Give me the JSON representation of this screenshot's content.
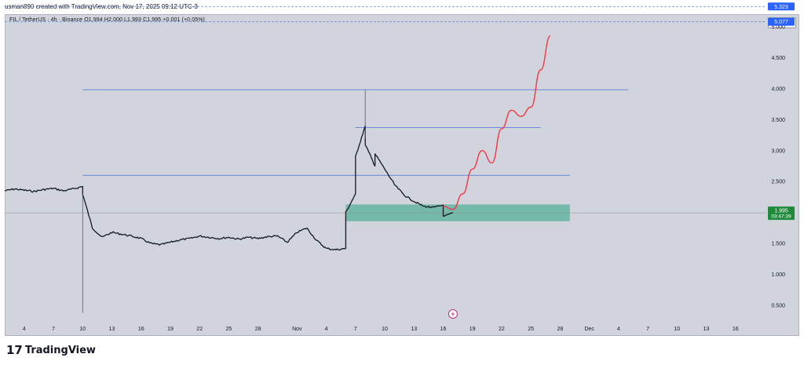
{
  "header": {
    "attribution": "usman890 created with TradingView.com, Nov 17, 2025 09:12 UTC-3"
  },
  "legend": {
    "text": "FIL / TetherUS · 4h · Binance  O1.994  H2.000  L1.993  C1.995  +0.001 (+0.05%)"
  },
  "currency": "USDT",
  "price_tags": {
    "dashed_1": "5.323",
    "dashed_2": "5.077",
    "current": "1.995",
    "countdown": "03:47:39"
  },
  "logo": {
    "mark": "17",
    "text": "TradingView"
  },
  "colors": {
    "panel": "#d1d4dc",
    "candles": "#131722",
    "level_lines": "#5b7fd6",
    "projection": "#f23645",
    "zone": "#64b4a0",
    "tag": "#2962ff",
    "current_tag": "#1e8a3a"
  },
  "chart_data": {
    "type": "line",
    "title": "",
    "xlabel": "",
    "ylabel": "",
    "ylim": [
      0.3,
      5.2
    ],
    "x_range": [
      "2025-10-02",
      "2025-12-19"
    ],
    "y_tick_labels": [
      "0.500",
      "1.000",
      "1.500",
      "2.000",
      "2.500",
      "3.000",
      "3.500",
      "4.000",
      "4.500",
      "5.000"
    ],
    "x_tick_labels": [
      {
        "label": "4",
        "date": "2025-10-04"
      },
      {
        "label": "7",
        "date": "2025-10-07"
      },
      {
        "label": "10",
        "date": "2025-10-10"
      },
      {
        "label": "13",
        "date": "2025-10-13"
      },
      {
        "label": "16",
        "date": "2025-10-16"
      },
      {
        "label": "19",
        "date": "2025-10-19"
      },
      {
        "label": "22",
        "date": "2025-10-22"
      },
      {
        "label": "25",
        "date": "2025-10-25"
      },
      {
        "label": "28",
        "date": "2025-10-28"
      },
      {
        "label": "Nov",
        "date": "2025-11-01"
      },
      {
        "label": "4",
        "date": "2025-11-04"
      },
      {
        "label": "7",
        "date": "2025-11-07"
      },
      {
        "label": "10",
        "date": "2025-11-10"
      },
      {
        "label": "13",
        "date": "2025-11-13"
      },
      {
        "label": "16",
        "date": "2025-11-16"
      },
      {
        "label": "19",
        "date": "2025-11-19"
      },
      {
        "label": "22",
        "date": "2025-11-22"
      },
      {
        "label": "25",
        "date": "2025-11-25"
      },
      {
        "label": "28",
        "date": "2025-11-28"
      },
      {
        "label": "Dec",
        "date": "2025-12-01"
      },
      {
        "label": "4",
        "date": "2025-12-04"
      },
      {
        "label": "7",
        "date": "2025-12-07"
      },
      {
        "label": "10",
        "date": "2025-12-10"
      },
      {
        "label": "13",
        "date": "2025-12-13"
      },
      {
        "label": "16",
        "date": "2025-12-16"
      }
    ],
    "price_path": [
      {
        "x": "2025-10-02",
        "y": 2.35
      },
      {
        "x": "2025-10-03",
        "y": 2.38
      },
      {
        "x": "2025-10-04",
        "y": 2.36
      },
      {
        "x": "2025-10-05",
        "y": 2.34
      },
      {
        "x": "2025-10-06",
        "y": 2.37
      },
      {
        "x": "2025-10-07",
        "y": 2.39
      },
      {
        "x": "2025-10-08",
        "y": 2.35
      },
      {
        "x": "2025-10-09",
        "y": 2.38
      },
      {
        "x": "2025-10-10",
        "y": 2.42
      },
      {
        "x": "2025-10-10",
        "y": 2.3
      },
      {
        "x": "2025-10-11",
        "y": 1.75
      },
      {
        "x": "2025-10-12",
        "y": 1.6
      },
      {
        "x": "2025-10-13",
        "y": 1.68
      },
      {
        "x": "2025-10-14",
        "y": 1.65
      },
      {
        "x": "2025-10-15",
        "y": 1.62
      },
      {
        "x": "2025-10-16",
        "y": 1.58
      },
      {
        "x": "2025-10-17",
        "y": 1.5
      },
      {
        "x": "2025-10-18",
        "y": 1.48
      },
      {
        "x": "2025-10-19",
        "y": 1.52
      },
      {
        "x": "2025-10-20",
        "y": 1.56
      },
      {
        "x": "2025-10-21",
        "y": 1.58
      },
      {
        "x": "2025-10-22",
        "y": 1.62
      },
      {
        "x": "2025-10-23",
        "y": 1.6
      },
      {
        "x": "2025-10-24",
        "y": 1.58
      },
      {
        "x": "2025-10-25",
        "y": 1.6
      },
      {
        "x": "2025-10-26",
        "y": 1.57
      },
      {
        "x": "2025-10-27",
        "y": 1.6
      },
      {
        "x": "2025-10-28",
        "y": 1.58
      },
      {
        "x": "2025-10-29",
        "y": 1.61
      },
      {
        "x": "2025-10-30",
        "y": 1.62
      },
      {
        "x": "2025-10-31",
        "y": 1.52
      },
      {
        "x": "2025-11-01",
        "y": 1.68
      },
      {
        "x": "2025-11-02",
        "y": 1.75
      },
      {
        "x": "2025-11-03",
        "y": 1.55
      },
      {
        "x": "2025-11-04",
        "y": 1.42
      },
      {
        "x": "2025-11-05",
        "y": 1.4
      },
      {
        "x": "2025-11-06",
        "y": 1.42
      },
      {
        "x": "2025-11-06",
        "y": 2.0
      },
      {
        "x": "2025-11-07",
        "y": 2.3
      },
      {
        "x": "2025-11-07",
        "y": 2.9
      },
      {
        "x": "2025-11-08",
        "y": 3.4
      },
      {
        "x": "2025-11-08",
        "y": 3.1
      },
      {
        "x": "2025-11-09",
        "y": 2.75
      },
      {
        "x": "2025-11-09",
        "y": 2.95
      },
      {
        "x": "2025-11-10",
        "y": 2.7
      },
      {
        "x": "2025-11-11",
        "y": 2.45
      },
      {
        "x": "2025-11-12",
        "y": 2.28
      },
      {
        "x": "2025-11-13",
        "y": 2.18
      },
      {
        "x": "2025-11-14",
        "y": 2.1
      },
      {
        "x": "2025-11-15",
        "y": 2.08
      },
      {
        "x": "2025-11-16",
        "y": 2.12
      },
      {
        "x": "2025-11-16",
        "y": 1.93
      },
      {
        "x": "2025-11-17",
        "y": 1.995
      }
    ],
    "price_high_wick": {
      "x": "2025-11-08",
      "y": 3.98
    },
    "price_low_wick": {
      "x": "2025-10-10",
      "y": 0.38
    },
    "horizontal_levels": [
      {
        "y": 3.98,
        "x_start": "2025-10-10",
        "x_end": "2025-12-05"
      },
      {
        "y": 3.37,
        "x_start": "2025-11-07",
        "x_end": "2025-11-26"
      },
      {
        "y": 2.6,
        "x_start": "2025-10-10",
        "x_end": "2025-11-29"
      }
    ],
    "dashed_levels": [
      5.323,
      5.077
    ],
    "zone": {
      "y_low": 1.86,
      "y_high": 2.13,
      "x_start": "2025-11-06",
      "x_end": "2025-11-29"
    },
    "projection_path": [
      {
        "x": "2025-11-16",
        "y": 2.1
      },
      {
        "x": "2025-11-17",
        "y": 2.05
      },
      {
        "x": "2025-11-18",
        "y": 2.3
      },
      {
        "x": "2025-11-19",
        "y": 2.7
      },
      {
        "x": "2025-11-20",
        "y": 3.0
      },
      {
        "x": "2025-11-21",
        "y": 2.8
      },
      {
        "x": "2025-11-22",
        "y": 3.35
      },
      {
        "x": "2025-11-23",
        "y": 3.65
      },
      {
        "x": "2025-11-24",
        "y": 3.55
      },
      {
        "x": "2025-11-25",
        "y": 3.7
      },
      {
        "x": "2025-11-26",
        "y": 4.3
      },
      {
        "x": "2025-11-27",
        "y": 4.85
      }
    ],
    "current_price": 1.995,
    "grid": false,
    "legend_position": "top-left"
  }
}
